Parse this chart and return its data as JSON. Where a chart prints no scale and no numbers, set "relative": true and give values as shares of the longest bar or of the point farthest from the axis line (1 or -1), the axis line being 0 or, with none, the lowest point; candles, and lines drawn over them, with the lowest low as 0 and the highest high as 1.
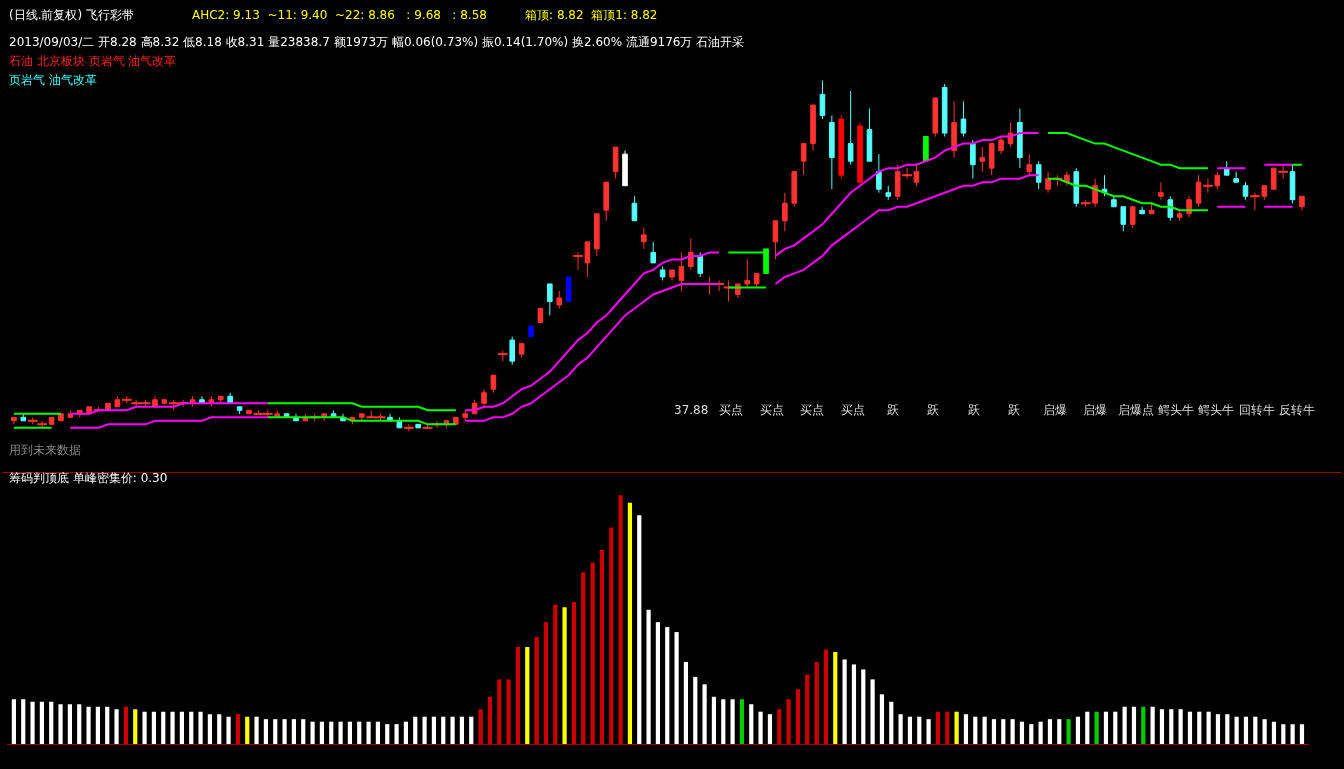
{
  "chart_data": [
    {
      "type": "candlestick",
      "title": "(日线.前复权) 飞行彩带",
      "subtitle": "AHC2: 9.13  ~11: 9.40  ~22: 8.86   : 9.68   : 8.58          箱顶: 8.82  箱顶1: 8.82",
      "relative": true,
      "annotations": [
        "2013/09/03/二 开8.28 高8.32 低8.18 收8.31 量23838.7 额1973万 幅0.06(0.73%) 振0.14(1.70%) 换2.60% 流通9176万 石油开采",
        "石油 北京板块 页岩气 油气改革",
        "页岩气 油气改革",
        "用到未来数据",
        "37.88",
        "买点",
        "买点",
        "买点",
        "买点",
        "跃",
        "跃",
        "跃",
        "跃",
        "启爆",
        "启爆",
        "启爆点",
        "鳄头牛",
        "鳄头牛",
        "回转牛",
        "反转牛"
      ],
      "categories": [
        null,
        null,
        null,
        null,
        null,
        null,
        null,
        null,
        null,
        null,
        null,
        null,
        null,
        null,
        null,
        null,
        null,
        null,
        null,
        null,
        null,
        null,
        null,
        null,
        null,
        null,
        null,
        null,
        null,
        null,
        null,
        null,
        null,
        null,
        null,
        null,
        null,
        null,
        null,
        null,
        null,
        null,
        null,
        null,
        null,
        null,
        null,
        null,
        null,
        null,
        null,
        null,
        null,
        null,
        null,
        null,
        null,
        null,
        null,
        null,
        null,
        null,
        null,
        null,
        null,
        null,
        null,
        null,
        null,
        null,
        null,
        null,
        null,
        null,
        null,
        null,
        null,
        null,
        null,
        null,
        null,
        null,
        null,
        null,
        null,
        null,
        null,
        null,
        null,
        null,
        null,
        null,
        null,
        null,
        null,
        null,
        null,
        null,
        null,
        null,
        null,
        null,
        null,
        null,
        null,
        null,
        null,
        null,
        null,
        null,
        null,
        null,
        null,
        null,
        null,
        null,
        null,
        null,
        null,
        null,
        null,
        null,
        null,
        null,
        null,
        null,
        null,
        null,
        null,
        null,
        null,
        null,
        null,
        null,
        null,
        null,
        null,
        null
      ],
      "ohlc": [
        [
          0.03,
          0.04,
          0.02,
          0.04
        ],
        [
          0.04,
          0.05,
          0.03,
          0.03
        ],
        [
          0.03,
          0.04,
          0.02,
          0.03
        ],
        [
          0.02,
          0.03,
          0.01,
          0.02
        ],
        [
          0.02,
          0.04,
          0.02,
          0.04
        ],
        [
          0.03,
          0.05,
          0.03,
          0.05
        ],
        [
          0.04,
          0.06,
          0.04,
          0.05
        ],
        [
          0.05,
          0.06,
          0.04,
          0.06
        ],
        [
          0.05,
          0.07,
          0.05,
          0.07
        ],
        [
          0.06,
          0.07,
          0.06,
          0.06
        ],
        [
          0.06,
          0.08,
          0.06,
          0.08
        ],
        [
          0.07,
          0.1,
          0.07,
          0.09
        ],
        [
          0.09,
          0.1,
          0.08,
          0.09
        ],
        [
          0.08,
          0.09,
          0.07,
          0.08
        ],
        [
          0.08,
          0.09,
          0.07,
          0.08
        ],
        [
          0.07,
          0.1,
          0.07,
          0.09
        ],
        [
          0.08,
          0.09,
          0.08,
          0.09
        ],
        [
          0.08,
          0.09,
          0.06,
          0.08
        ],
        [
          0.08,
          0.09,
          0.07,
          0.08
        ],
        [
          0.08,
          0.1,
          0.07,
          0.09
        ],
        [
          0.09,
          0.1,
          0.08,
          0.08
        ],
        [
          0.08,
          0.1,
          0.07,
          0.09
        ],
        [
          0.09,
          0.1,
          0.08,
          0.1
        ],
        [
          0.1,
          0.11,
          0.08,
          0.08
        ],
        [
          0.07,
          0.07,
          0.05,
          0.06
        ],
        [
          0.05,
          0.06,
          0.05,
          0.06
        ],
        [
          0.05,
          0.06,
          0.05,
          0.05
        ],
        [
          0.05,
          0.06,
          0.04,
          0.05
        ],
        [
          0.04,
          0.06,
          0.04,
          0.05
        ],
        [
          0.05,
          0.05,
          0.04,
          0.04
        ],
        [
          0.04,
          0.05,
          0.03,
          0.03
        ],
        [
          0.03,
          0.05,
          0.03,
          0.04
        ],
        [
          0.04,
          0.05,
          0.03,
          0.04
        ],
        [
          0.04,
          0.05,
          0.03,
          0.05
        ],
        [
          0.05,
          0.06,
          0.04,
          0.04
        ],
        [
          0.04,
          0.05,
          0.03,
          0.03
        ],
        [
          0.03,
          0.04,
          0.02,
          0.04
        ],
        [
          0.04,
          0.05,
          0.03,
          0.05
        ],
        [
          0.04,
          0.06,
          0.04,
          0.04
        ],
        [
          0.04,
          0.05,
          0.03,
          0.04
        ],
        [
          0.04,
          0.05,
          0.03,
          0.03
        ],
        [
          0.03,
          0.04,
          0.01,
          0.01
        ],
        [
          0.01,
          0.02,
          0.0,
          0.01
        ],
        [
          0.02,
          0.02,
          0.01,
          0.01
        ],
        [
          0.01,
          0.02,
          0.01,
          0.01
        ],
        [
          0.02,
          0.03,
          0.01,
          0.02
        ],
        [
          0.02,
          0.03,
          0.01,
          0.03
        ],
        [
          0.02,
          0.04,
          0.02,
          0.04
        ],
        [
          0.04,
          0.06,
          0.03,
          0.05
        ],
        [
          0.05,
          0.09,
          0.05,
          0.08
        ],
        [
          0.08,
          0.12,
          0.07,
          0.11
        ],
        [
          0.12,
          0.16,
          0.11,
          0.16
        ],
        [
          0.22,
          0.23,
          0.2,
          0.22
        ],
        [
          0.26,
          0.27,
          0.19,
          0.2
        ],
        [
          0.22,
          0.25,
          0.21,
          0.25
        ],
        [
          0.27,
          0.3,
          0.27,
          0.3
        ],
        [
          0.31,
          0.35,
          0.31,
          0.35
        ],
        [
          0.42,
          0.42,
          0.33,
          0.37
        ],
        [
          0.36,
          0.4,
          0.35,
          0.38
        ],
        [
          0.37,
          0.44,
          0.37,
          0.44
        ],
        [
          0.5,
          0.51,
          0.46,
          0.5
        ],
        [
          0.48,
          0.54,
          0.44,
          0.54
        ],
        [
          0.52,
          0.62,
          0.5,
          0.62
        ],
        [
          0.63,
          0.71,
          0.6,
          0.71
        ],
        [
          0.74,
          0.81,
          0.72,
          0.81
        ],
        [
          0.79,
          0.8,
          0.7,
          0.7
        ],
        [
          0.65,
          0.67,
          0.6,
          0.6
        ],
        [
          0.54,
          0.58,
          0.52,
          0.56
        ],
        [
          0.51,
          0.54,
          0.48,
          0.48
        ],
        [
          0.46,
          0.47,
          0.43,
          0.44
        ],
        [
          0.44,
          0.46,
          0.43,
          0.46
        ],
        [
          0.43,
          0.51,
          0.4,
          0.47
        ],
        [
          0.47,
          0.55,
          0.46,
          0.51
        ],
        [
          0.5,
          0.51,
          0.44,
          0.45
        ],
        [
          0.42,
          0.44,
          0.39,
          0.42
        ],
        [
          0.42,
          0.43,
          0.4,
          0.42
        ],
        [
          0.41,
          0.43,
          0.37,
          0.41
        ],
        [
          0.39,
          0.42,
          0.38,
          0.42
        ],
        [
          0.42,
          0.49,
          0.41,
          0.43
        ],
        [
          0.42,
          0.45,
          0.41,
          0.45
        ],
        [
          0.45,
          0.52,
          0.45,
          0.52
        ],
        [
          0.54,
          0.6,
          0.49,
          0.6
        ],
        [
          0.6,
          0.68,
          0.57,
          0.65
        ],
        [
          0.65,
          0.74,
          0.64,
          0.74
        ],
        [
          0.77,
          0.82,
          0.73,
          0.82
        ],
        [
          0.82,
          0.93,
          0.8,
          0.93
        ],
        [
          0.96,
          1.0,
          0.89,
          0.9
        ],
        [
          0.88,
          0.9,
          0.69,
          0.78
        ],
        [
          0.89,
          0.9,
          0.72,
          0.73
        ],
        [
          0.82,
          0.97,
          0.76,
          0.77
        ],
        [
          0.87,
          0.88,
          0.7,
          0.71
        ],
        [
          0.86,
          0.92,
          0.77,
          0.77
        ],
        [
          0.74,
          0.79,
          0.68,
          0.69
        ],
        [
          0.68,
          0.7,
          0.66,
          0.67
        ],
        [
          0.67,
          0.76,
          0.66,
          0.74
        ],
        [
          0.73,
          0.75,
          0.72,
          0.73
        ],
        [
          0.71,
          0.76,
          0.7,
          0.74
        ],
        [
          0.77,
          0.84,
          0.77,
          0.84
        ],
        [
          0.85,
          0.95,
          0.84,
          0.95
        ],
        [
          0.98,
          0.99,
          0.84,
          0.85
        ],
        [
          0.8,
          0.94,
          0.78,
          0.88
        ],
        [
          0.89,
          0.94,
          0.84,
          0.85
        ],
        [
          0.82,
          0.83,
          0.72,
          0.76
        ],
        [
          0.77,
          0.81,
          0.74,
          0.78
        ],
        [
          0.75,
          0.82,
          0.73,
          0.82
        ],
        [
          0.8,
          0.84,
          0.79,
          0.83
        ],
        [
          0.82,
          0.88,
          0.81,
          0.85
        ],
        [
          0.88,
          0.92,
          0.75,
          0.78
        ],
        [
          0.74,
          0.79,
          0.73,
          0.76
        ],
        [
          0.76,
          0.77,
          0.69,
          0.71
        ],
        [
          0.69,
          0.74,
          0.68,
          0.72
        ],
        [
          0.72,
          0.73,
          0.7,
          0.72
        ],
        [
          0.71,
          0.74,
          0.7,
          0.73
        ],
        [
          0.74,
          0.75,
          0.64,
          0.65
        ],
        [
          0.65,
          0.66,
          0.64,
          0.65
        ],
        [
          0.65,
          0.72,
          0.64,
          0.7
        ],
        [
          0.69,
          0.73,
          0.67,
          0.68
        ],
        [
          0.66,
          0.67,
          0.64,
          0.64
        ],
        [
          0.64,
          0.64,
          0.57,
          0.59
        ],
        [
          0.59,
          0.64,
          0.58,
          0.64
        ],
        [
          0.63,
          0.64,
          0.62,
          0.62
        ],
        [
          0.62,
          0.65,
          0.62,
          0.63
        ],
        [
          0.67,
          0.71,
          0.66,
          0.68
        ],
        [
          0.66,
          0.67,
          0.6,
          0.61
        ],
        [
          0.61,
          0.63,
          0.6,
          0.62
        ],
        [
          0.62,
          0.67,
          0.61,
          0.66
        ],
        [
          0.65,
          0.73,
          0.64,
          0.71
        ],
        [
          0.7,
          0.72,
          0.68,
          0.7
        ],
        [
          0.7,
          0.74,
          0.69,
          0.73
        ],
        [
          0.75,
          0.77,
          0.73,
          0.73
        ],
        [
          0.72,
          0.74,
          0.71,
          0.71
        ],
        [
          0.7,
          0.71,
          0.66,
          0.67
        ],
        [
          0.67,
          0.68,
          0.63,
          0.67
        ],
        [
          0.67,
          0.7,
          0.66,
          0.7
        ],
        [
          0.69,
          0.75,
          0.69,
          0.75
        ],
        [
          0.74,
          0.76,
          0.72,
          0.74
        ],
        [
          0.74,
          0.76,
          0.65,
          0.66
        ],
        [
          0.64,
          0.67,
          0.63,
          0.67
        ]
      ],
      "colors": [
        "#ff3232",
        "#54ffff",
        "#ff3232",
        "#ff3232",
        "#ff3232",
        "#ff3232",
        "#ff3232",
        "#ff3232",
        "#ff3232",
        "#ff3232",
        "#ff3232",
        "#ff3232",
        "#ff3232",
        "#ff3232",
        "#ff3232",
        "#ff3232",
        "#ff3232",
        "#ff3232",
        "#ff3232",
        "#ff3232",
        "#54ffff",
        "#ff3232",
        "#ff3232",
        "#54ffff",
        "#54ffff",
        "#ff3232",
        "#ff3232",
        "#ff3232",
        "#ff3232",
        "#54ffff",
        "#54ffff",
        "#ff3232",
        "#ff3232",
        "#ff3232",
        "#54ffff",
        "#54ffff",
        "#ff3232",
        "#ff3232",
        "#ff3232",
        "#ff3232",
        "#54ffff",
        "#54ffff",
        "#ff3232",
        "#54ffff",
        "#ff3232",
        "#ff3232",
        "#ff3232",
        "#ff3232",
        "#ff3232",
        "#ff3232",
        "#ff3232",
        "#ff3232",
        "#ff3232",
        "#54ffff",
        "#ff3232",
        "#0000ff",
        "#ff3232",
        "#54ffff",
        "#ff3232",
        "#0000ff",
        "#ff3232",
        "#ff3232",
        "#ff3232",
        "#ff3232",
        "#ff3232",
        "#ffffff",
        "#54ffff",
        "#ff3232",
        "#54ffff",
        "#54ffff",
        "#ff3232",
        "#ff3232",
        "#ff3232",
        "#54ffff",
        "#ff3232",
        "#ff3232",
        "#ff3232",
        "#ff3232",
        "#ff3232",
        "#ff3232",
        "#00ff00",
        "#ff3232",
        "#ff3232",
        "#ff3232",
        "#ff3232",
        "#ff3232",
        "#54ffff",
        "#54ffff",
        "#ff0000",
        "#54ffff",
        "#ff0000",
        "#54ffff",
        "#54ffff",
        "#54ffff",
        "#ff3232",
        "#ff3232",
        "#ff3232",
        "#00ff00",
        "#ff3232",
        "#54ffff",
        "#ff3232",
        "#54ffff",
        "#54ffff",
        "#ff3232",
        "#ff3232",
        "#ff3232",
        "#ff3232",
        "#54ffff",
        "#ff3232",
        "#54ffff",
        "#ff3232",
        "#ff3232",
        "#ff3232",
        "#54ffff",
        "#ff3232",
        "#ff3232",
        "#54ffff",
        "#54ffff",
        "#54ffff",
        "#ff3232",
        "#54ffff",
        "#ff3232",
        "#ff3232",
        "#54ffff",
        "#ff3232",
        "#ff3232",
        "#ff3232",
        "#ff3232",
        "#ff3232",
        "#54ffff",
        "#54ffff",
        "#54ffff",
        "#ff3232",
        "#ff3232",
        "#ff3232",
        "#ff3232",
        "#54ffff",
        "#ff3232"
      ],
      "series": [
        {
          "type": "line",
          "color": "#ff00ff",
          "values": [
            null,
            null,
            null,
            null,
            null,
            null,
            0.05,
            0.05,
            0.05,
            0.06,
            0.06,
            0.06,
            0.06,
            0.07,
            0.07,
            0.07,
            0.07,
            0.07,
            0.08,
            0.08,
            0.08,
            0.08,
            0.08,
            0.08,
            0.08,
            0.08,
            0.08,
            0.08,
            null,
            null,
            null,
            null,
            null,
            null,
            null,
            null,
            null,
            null,
            null,
            null,
            null,
            null,
            null,
            null,
            null,
            null,
            null,
            null,
            0.06,
            0.06,
            0.07,
            0.07,
            0.08,
            0.1,
            0.12,
            0.13,
            0.15,
            0.17,
            0.2,
            0.23,
            0.26,
            0.28,
            0.31,
            0.33,
            0.36,
            0.39,
            0.42,
            0.45,
            0.46,
            0.48,
            0.49,
            0.49,
            0.5,
            0.5,
            0.51,
            0.51,
            null,
            null,
            null,
            null,
            null,
            0.5,
            0.52,
            0.53,
            0.55,
            0.57,
            0.59,
            0.62,
            0.65,
            0.68,
            0.7,
            0.72,
            0.74,
            0.75,
            0.75,
            0.76,
            0.76,
            0.77,
            0.78,
            0.8,
            0.81,
            0.82,
            0.82,
            0.83,
            0.83,
            0.84,
            0.84,
            0.85,
            0.85,
            0.85,
            null,
            null,
            null,
            null,
            null,
            null,
            null,
            null,
            null,
            null,
            null,
            null,
            null,
            null,
            null,
            null,
            null,
            null,
            0.75,
            0.75,
            0.75,
            0.75,
            null,
            0.76,
            0.76,
            0.76,
            0.76,
            null
          ]
        },
        {
          "type": "line",
          "color": "#ff00ff",
          "values": [
            null,
            null,
            null,
            null,
            null,
            null,
            0.01,
            0.01,
            0.01,
            0.01,
            0.02,
            0.02,
            0.02,
            0.02,
            0.02,
            0.03,
            0.03,
            0.03,
            0.03,
            0.03,
            0.03,
            0.04,
            0.04,
            0.04,
            0.04,
            0.04,
            0.04,
            0.04,
            null,
            null,
            null,
            null,
            null,
            null,
            null,
            null,
            null,
            null,
            null,
            null,
            null,
            null,
            null,
            null,
            null,
            null,
            null,
            null,
            0.03,
            0.03,
            0.03,
            0.04,
            0.04,
            0.05,
            0.07,
            0.08,
            0.1,
            0.12,
            0.14,
            0.16,
            0.19,
            0.21,
            0.24,
            0.27,
            0.3,
            0.33,
            0.35,
            0.37,
            0.39,
            0.4,
            0.41,
            0.42,
            0.42,
            0.42,
            0.42,
            0.42,
            null,
            null,
            null,
            null,
            null,
            0.42,
            0.44,
            0.45,
            0.46,
            0.48,
            0.5,
            0.53,
            0.55,
            0.57,
            0.59,
            0.61,
            0.63,
            0.63,
            0.64,
            0.64,
            0.65,
            0.66,
            0.67,
            0.68,
            0.69,
            0.7,
            0.7,
            0.71,
            0.71,
            0.72,
            0.72,
            0.72,
            0.73,
            0.73,
            null,
            null,
            null,
            null,
            null,
            null,
            null,
            null,
            null,
            null,
            null,
            null,
            null,
            null,
            null,
            null,
            null,
            null,
            0.64,
            0.64,
            0.64,
            0.64,
            null,
            0.64,
            0.64,
            0.64,
            0.64,
            null
          ]
        },
        {
          "type": "line",
          "color": "#00ff00",
          "values": [
            0.05,
            0.05,
            0.05,
            0.05,
            0.05,
            0.05,
            null,
            null,
            null,
            null,
            null,
            null,
            null,
            null,
            null,
            null,
            null,
            null,
            null,
            null,
            null,
            null,
            null,
            null,
            null,
            null,
            null,
            0.08,
            0.08,
            0.08,
            0.08,
            0.08,
            0.08,
            0.08,
            0.08,
            0.08,
            0.08,
            0.07,
            0.07,
            0.07,
            0.07,
            0.07,
            0.07,
            0.07,
            0.06,
            0.06,
            0.06,
            0.06,
            null,
            null,
            null,
            null,
            null,
            null,
            null,
            null,
            null,
            null,
            null,
            null,
            null,
            null,
            null,
            null,
            null,
            null,
            null,
            null,
            null,
            null,
            null,
            null,
            null,
            null,
            null,
            null,
            0.51,
            0.51,
            0.51,
            0.51,
            0.51,
            null,
            null,
            null,
            null,
            null,
            null,
            null,
            null,
            null,
            null,
            null,
            null,
            null,
            null,
            null,
            null,
            null,
            null,
            null,
            null,
            null,
            null,
            null,
            null,
            null,
            null,
            null,
            null,
            null,
            0.85,
            0.85,
            0.85,
            0.84,
            0.83,
            0.82,
            0.82,
            0.81,
            0.8,
            0.79,
            0.78,
            0.77,
            0.76,
            0.76,
            0.75,
            0.75,
            0.75,
            0.75,
            null,
            null,
            null,
            null,
            null,
            null,
            null,
            null,
            0.76,
            0.76
          ]
        },
        {
          "type": "line",
          "color": "#00ff00",
          "values": [
            0.01,
            0.01,
            0.01,
            0.01,
            0.01,
            null,
            null,
            null,
            null,
            null,
            null,
            null,
            null,
            null,
            null,
            null,
            null,
            null,
            null,
            null,
            null,
            null,
            null,
            null,
            null,
            null,
            null,
            0.04,
            0.04,
            0.04,
            0.04,
            0.04,
            0.04,
            0.04,
            0.04,
            0.04,
            0.03,
            0.03,
            0.03,
            0.03,
            0.03,
            0.03,
            0.03,
            0.03,
            0.02,
            0.02,
            0.02,
            0.02,
            null,
            null,
            null,
            null,
            null,
            null,
            null,
            null,
            null,
            null,
            null,
            null,
            null,
            null,
            null,
            null,
            null,
            null,
            null,
            null,
            null,
            null,
            null,
            null,
            null,
            null,
            null,
            null,
            0.41,
            0.41,
            0.41,
            0.41,
            0.41,
            null,
            null,
            null,
            null,
            null,
            null,
            null,
            null,
            null,
            null,
            null,
            null,
            null,
            null,
            null,
            null,
            null,
            null,
            null,
            null,
            null,
            null,
            null,
            null,
            null,
            null,
            null,
            null,
            null,
            0.72,
            0.72,
            0.71,
            0.7,
            0.7,
            0.69,
            0.68,
            0.67,
            0.67,
            0.66,
            0.65,
            0.65,
            0.64,
            0.64,
            0.63,
            0.63,
            0.63,
            0.63,
            null,
            null,
            null,
            null,
            null,
            null,
            null,
            null,
            null,
            null
          ]
        }
      ]
    },
    {
      "type": "bar",
      "title": "筹码判顶底 单峰密集价: 0.30",
      "relative": true,
      "categories": [
        null,
        null,
        null,
        null,
        null,
        null,
        null,
        null,
        null,
        null,
        null,
        null,
        null,
        null,
        null,
        null,
        null,
        null,
        null,
        null,
        null,
        null,
        null,
        null,
        null,
        null,
        null,
        null,
        null,
        null,
        null,
        null,
        null,
        null,
        null,
        null,
        null,
        null,
        null,
        null,
        null,
        null,
        null,
        null,
        null,
        null,
        null,
        null,
        null,
        null,
        null,
        null,
        null,
        null,
        null,
        null,
        null,
        null,
        null,
        null,
        null,
        null,
        null,
        null,
        null,
        null,
        null,
        null,
        null,
        null,
        null,
        null,
        null,
        null,
        null,
        null,
        null,
        null,
        null,
        null,
        null,
        null,
        null,
        null,
        null,
        null,
        null,
        null,
        null,
        null,
        null,
        null,
        null,
        null,
        null,
        null,
        null,
        null,
        null,
        null,
        null,
        null,
        null,
        null,
        null,
        null,
        null,
        null,
        null,
        null,
        null,
        null,
        null,
        null,
        null,
        null,
        null,
        null,
        null,
        null,
        null,
        null,
        null,
        null,
        null,
        null,
        null,
        null,
        null,
        null,
        null,
        null,
        null,
        null,
        null,
        null,
        null,
        null,
        null
      ],
      "values": [
        0.18,
        0.18,
        0.17,
        0.17,
        0.17,
        0.16,
        0.16,
        0.16,
        0.15,
        0.15,
        0.15,
        0.14,
        0.15,
        0.14,
        0.13,
        0.13,
        0.13,
        0.13,
        0.13,
        0.13,
        0.13,
        0.12,
        0.12,
        0.11,
        0.12,
        0.11,
        0.11,
        0.1,
        0.1,
        0.1,
        0.1,
        0.1,
        0.09,
        0.09,
        0.09,
        0.09,
        0.09,
        0.09,
        0.09,
        0.09,
        0.08,
        0.08,
        0.09,
        0.11,
        0.11,
        0.11,
        0.11,
        0.11,
        0.11,
        0.11,
        0.14,
        0.19,
        0.26,
        0.26,
        0.39,
        0.39,
        0.43,
        0.49,
        0.56,
        0.55,
        0.57,
        0.69,
        0.73,
        0.78,
        0.87,
        1.0,
        0.97,
        0.92,
        0.54,
        0.49,
        0.47,
        0.45,
        0.33,
        0.27,
        0.24,
        0.19,
        0.18,
        0.18,
        0.18,
        0.16,
        0.13,
        0.12,
        0.14,
        0.18,
        0.22,
        0.28,
        0.33,
        0.38,
        0.37,
        0.34,
        0.32,
        0.3,
        0.26,
        0.2,
        0.17,
        0.12,
        0.11,
        0.11,
        0.1,
        0.13,
        0.13,
        0.13,
        0.12,
        0.11,
        0.11,
        0.1,
        0.1,
        0.1,
        0.09,
        0.08,
        0.09,
        0.1,
        0.1,
        0.1,
        0.11,
        0.13,
        0.13,
        0.13,
        0.13,
        0.15,
        0.15,
        0.15,
        0.15,
        0.14,
        0.14,
        0.14,
        0.13,
        0.13,
        0.13,
        0.12,
        0.12,
        0.11,
        0.11,
        0.11,
        0.1,
        0.09,
        0.08,
        0.08,
        0.08
      ],
      "colors": [
        "#ffffff",
        "#ffffff",
        "#ffffff",
        "#ffffff",
        "#ffffff",
        "#ffffff",
        "#ffffff",
        "#ffffff",
        "#ffffff",
        "#ffffff",
        "#ffffff",
        "#ffffff",
        "#cc0000",
        "#ffff00",
        "#ffffff",
        "#ffffff",
        "#ffffff",
        "#ffffff",
        "#ffffff",
        "#ffffff",
        "#ffffff",
        "#ffffff",
        "#ffffff",
        "#ffffff",
        "#cc0000",
        "#ffff00",
        "#ffffff",
        "#ffffff",
        "#ffffff",
        "#ffffff",
        "#ffffff",
        "#ffffff",
        "#ffffff",
        "#ffffff",
        "#ffffff",
        "#ffffff",
        "#ffffff",
        "#ffffff",
        "#ffffff",
        "#ffffff",
        "#ffffff",
        "#ffffff",
        "#ffffff",
        "#ffffff",
        "#ffffff",
        "#ffffff",
        "#ffffff",
        "#ffffff",
        "#ffffff",
        "#ffffff",
        "#cc0000",
        "#cc0000",
        "#cc0000",
        "#cc0000",
        "#cc0000",
        "#ffff00",
        "#cc0000",
        "#cc0000",
        "#cc0000",
        "#ffff00",
        "#cc0000",
        "#cc0000",
        "#cc0000",
        "#cc0000",
        "#cc0000",
        "#cc0000",
        "#ffff00",
        "#ffffff",
        "#ffffff",
        "#ffffff",
        "#ffffff",
        "#ffffff",
        "#ffffff",
        "#ffffff",
        "#ffffff",
        "#ffffff",
        "#ffffff",
        "#ffffff",
        "#00cc00",
        "#ffffff",
        "#ffffff",
        "#ffffff",
        "#cc0000",
        "#cc0000",
        "#cc0000",
        "#cc0000",
        "#cc0000",
        "#cc0000",
        "#ffff00",
        "#ffffff",
        "#ffffff",
        "#ffffff",
        "#ffffff",
        "#ffffff",
        "#ffffff",
        "#ffffff",
        "#ffffff",
        "#ffffff",
        "#ffffff",
        "#cc0000",
        "#cc0000",
        "#ffff00",
        "#ffffff",
        "#ffffff",
        "#ffffff",
        "#ffffff",
        "#ffffff",
        "#ffffff",
        "#ffffff",
        "#ffffff",
        "#ffffff",
        "#ffffff",
        "#ffffff",
        "#00cc00",
        "#ffffff",
        "#ffffff",
        "#00cc00",
        "#ffffff",
        "#ffffff",
        "#ffffff",
        "#ffffff",
        "#00cc00",
        "#ffffff",
        "#ffffff",
        "#ffffff",
        "#ffffff",
        "#ffffff",
        "#ffffff",
        "#ffffff",
        "#ffffff",
        "#ffffff",
        "#ffffff",
        "#ffffff",
        "#ffffff",
        "#ffffff",
        "#ffffff",
        "#ffffff",
        "#ffffff",
        "#ffffff"
      ]
    }
  ]
}
